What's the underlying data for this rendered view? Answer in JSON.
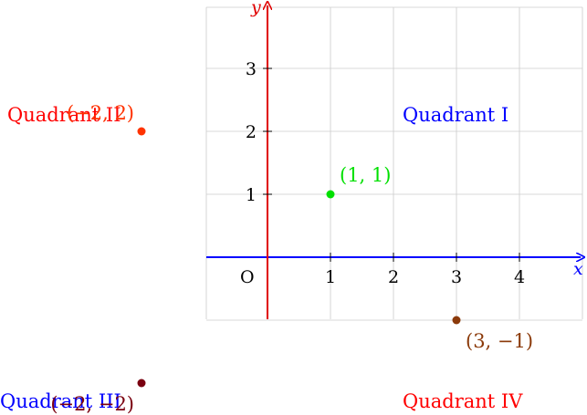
{
  "axes": {
    "x_label": "x",
    "y_label": "y",
    "origin_label": "O",
    "x_ticks": [
      "1",
      "2",
      "3",
      "4"
    ],
    "y_ticks": [
      "1",
      "2",
      "3"
    ],
    "x_color": "#0000ff",
    "y_color": "#e00000",
    "grid_color": "#cccccc"
  },
  "quadrants": [
    {
      "label": "Quadrant I",
      "color": "#0000ff"
    },
    {
      "label": "Quadrant II",
      "color": "#ff0000"
    },
    {
      "label": "Quadrant III",
      "color": "#0000ff"
    },
    {
      "label": "Quadrant IV",
      "color": "#ff0000"
    }
  ],
  "points": [
    {
      "x": 1,
      "y": 1,
      "label": "(1, 1)",
      "color": "#00e000"
    },
    {
      "x": -2,
      "y": 2,
      "label": "(−2, 2)",
      "color": "#ff3300"
    },
    {
      "x": -2,
      "y": -2,
      "label": "(−2, −2)",
      "color": "#7a0010"
    },
    {
      "x": 3,
      "y": -1,
      "label": "(3, −1)",
      "color": "#8b3a0a"
    }
  ]
}
